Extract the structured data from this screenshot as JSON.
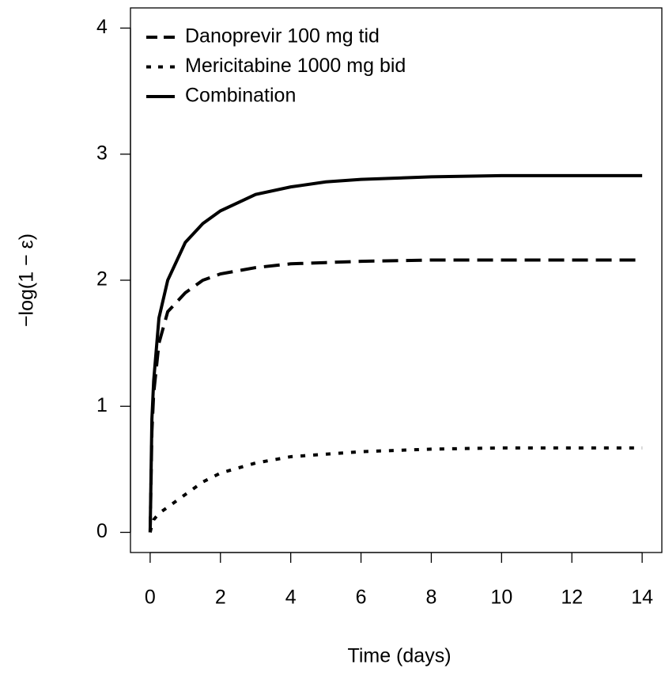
{
  "chart_data": {
    "type": "line",
    "x_label": "Time (days)",
    "y_label": "−log(1 − ε)",
    "x": [
      0,
      0.05,
      0.1,
      0.25,
      0.5,
      1,
      1.5,
      2,
      3,
      4,
      5,
      6,
      8,
      10,
      12,
      14
    ],
    "series": [
      {
        "name": "Danoprevir 100 mg tid",
        "color": "#000000",
        "dash": "dashed",
        "values": [
          0,
          0.8,
          1.1,
          1.5,
          1.75,
          1.9,
          2.0,
          2.05,
          2.1,
          2.13,
          2.14,
          2.15,
          2.16,
          2.16,
          2.16,
          2.16
        ]
      },
      {
        "name": "Mericitabine 1000 mg bid",
        "color": "#000000",
        "dash": "dotted",
        "values": [
          0,
          0.06,
          0.1,
          0.15,
          0.2,
          0.3,
          0.4,
          0.47,
          0.55,
          0.6,
          0.62,
          0.64,
          0.66,
          0.67,
          0.67,
          0.67
        ]
      },
      {
        "name": "Combination",
        "color": "#000000",
        "dash": "solid",
        "values": [
          0,
          0.9,
          1.2,
          1.7,
          2.0,
          2.3,
          2.45,
          2.55,
          2.68,
          2.74,
          2.78,
          2.8,
          2.82,
          2.83,
          2.83,
          2.83
        ]
      }
    ],
    "xlim": [
      -0.56,
      14.56
    ],
    "ylim": [
      -0.16,
      4.16
    ],
    "xticks": [
      0,
      2,
      4,
      6,
      8,
      10,
      12,
      14
    ],
    "yticks": [
      0,
      1,
      2,
      3,
      4
    ],
    "legend": "top-left"
  }
}
